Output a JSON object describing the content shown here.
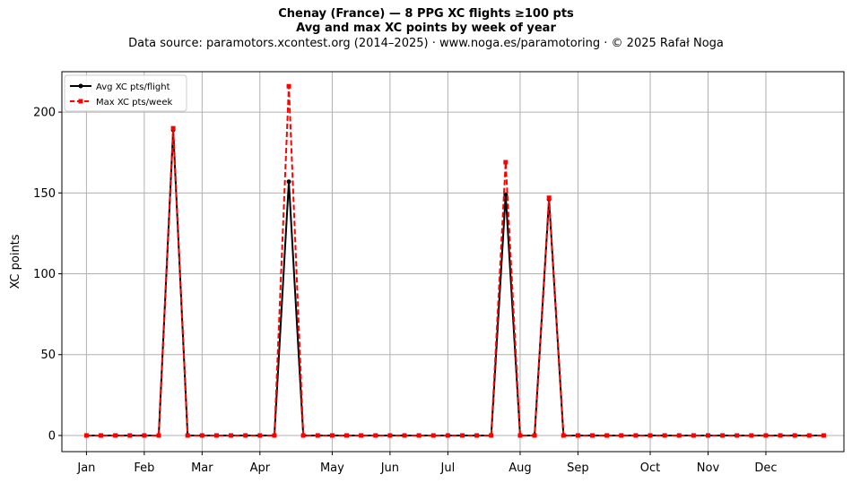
{
  "header": {
    "title": "Chenay (France)  —  8 PPG XC flights ≥100 pts",
    "subtitle": "Avg and max XC points by week of year",
    "source": "Data source: paramotors.xcontest.org (2014–2025)  ·  www.noga.es/paramotoring  ·  © 2025 Rafał Noga"
  },
  "chart_data": {
    "type": "line",
    "title": "Chenay (France)  —  8 PPG XC flights ≥100 pts",
    "subtitle": "Avg and max XC points by week of year",
    "xlabel": "",
    "ylabel": "XC points",
    "x_unit": "week of year",
    "x": [
      1,
      2,
      3,
      4,
      5,
      6,
      7,
      8,
      9,
      10,
      11,
      12,
      13,
      14,
      15,
      16,
      17,
      18,
      19,
      20,
      21,
      22,
      23,
      24,
      25,
      26,
      27,
      28,
      29,
      30,
      31,
      32,
      33,
      34,
      35,
      36,
      37,
      38,
      39,
      40,
      41,
      42,
      43,
      44,
      45,
      46,
      47,
      48,
      49,
      50,
      51,
      52
    ],
    "xlim": [
      -0.7,
      53.4
    ],
    "ylim": [
      -10,
      225
    ],
    "yticks": [
      0,
      50,
      100,
      150,
      200
    ],
    "month_ticks": [
      {
        "label": "Jan",
        "week": 1
      },
      {
        "label": "Feb",
        "week": 5
      },
      {
        "label": "Mar",
        "week": 9
      },
      {
        "label": "Apr",
        "week": 13
      },
      {
        "label": "May",
        "week": 18
      },
      {
        "label": "Jun",
        "week": 22
      },
      {
        "label": "Jul",
        "week": 26
      },
      {
        "label": "Aug",
        "week": 31
      },
      {
        "label": "Sep",
        "week": 35
      },
      {
        "label": "Oct",
        "week": 40
      },
      {
        "label": "Nov",
        "week": 44
      },
      {
        "label": "Dec",
        "week": 48
      }
    ],
    "grid": true,
    "legend_position": "top-left",
    "series": [
      {
        "name": "Avg XC pts/flight",
        "color": "#000000",
        "style": "solid",
        "marker": "circle",
        "values": [
          0,
          0,
          0,
          0,
          0,
          0,
          189,
          0,
          0,
          0,
          0,
          0,
          0,
          0,
          157,
          0,
          0,
          0,
          0,
          0,
          0,
          0,
          0,
          0,
          0,
          0,
          0,
          0,
          0,
          149,
          0,
          0,
          146,
          0,
          0,
          0,
          0,
          0,
          0,
          0,
          0,
          0,
          0,
          0,
          0,
          0,
          0,
          0,
          0,
          0,
          0,
          0
        ]
      },
      {
        "name": "Max XC pts/week",
        "color": "#ff0000",
        "style": "dashed",
        "marker": "square",
        "values": [
          0,
          0,
          0,
          0,
          0,
          0,
          190,
          0,
          0,
          0,
          0,
          0,
          0,
          0,
          216,
          0,
          0,
          0,
          0,
          0,
          0,
          0,
          0,
          0,
          0,
          0,
          0,
          0,
          0,
          169,
          0,
          0,
          147,
          0,
          0,
          0,
          0,
          0,
          0,
          0,
          0,
          0,
          0,
          0,
          0,
          0,
          0,
          0,
          0,
          0,
          0,
          0
        ]
      }
    ]
  }
}
